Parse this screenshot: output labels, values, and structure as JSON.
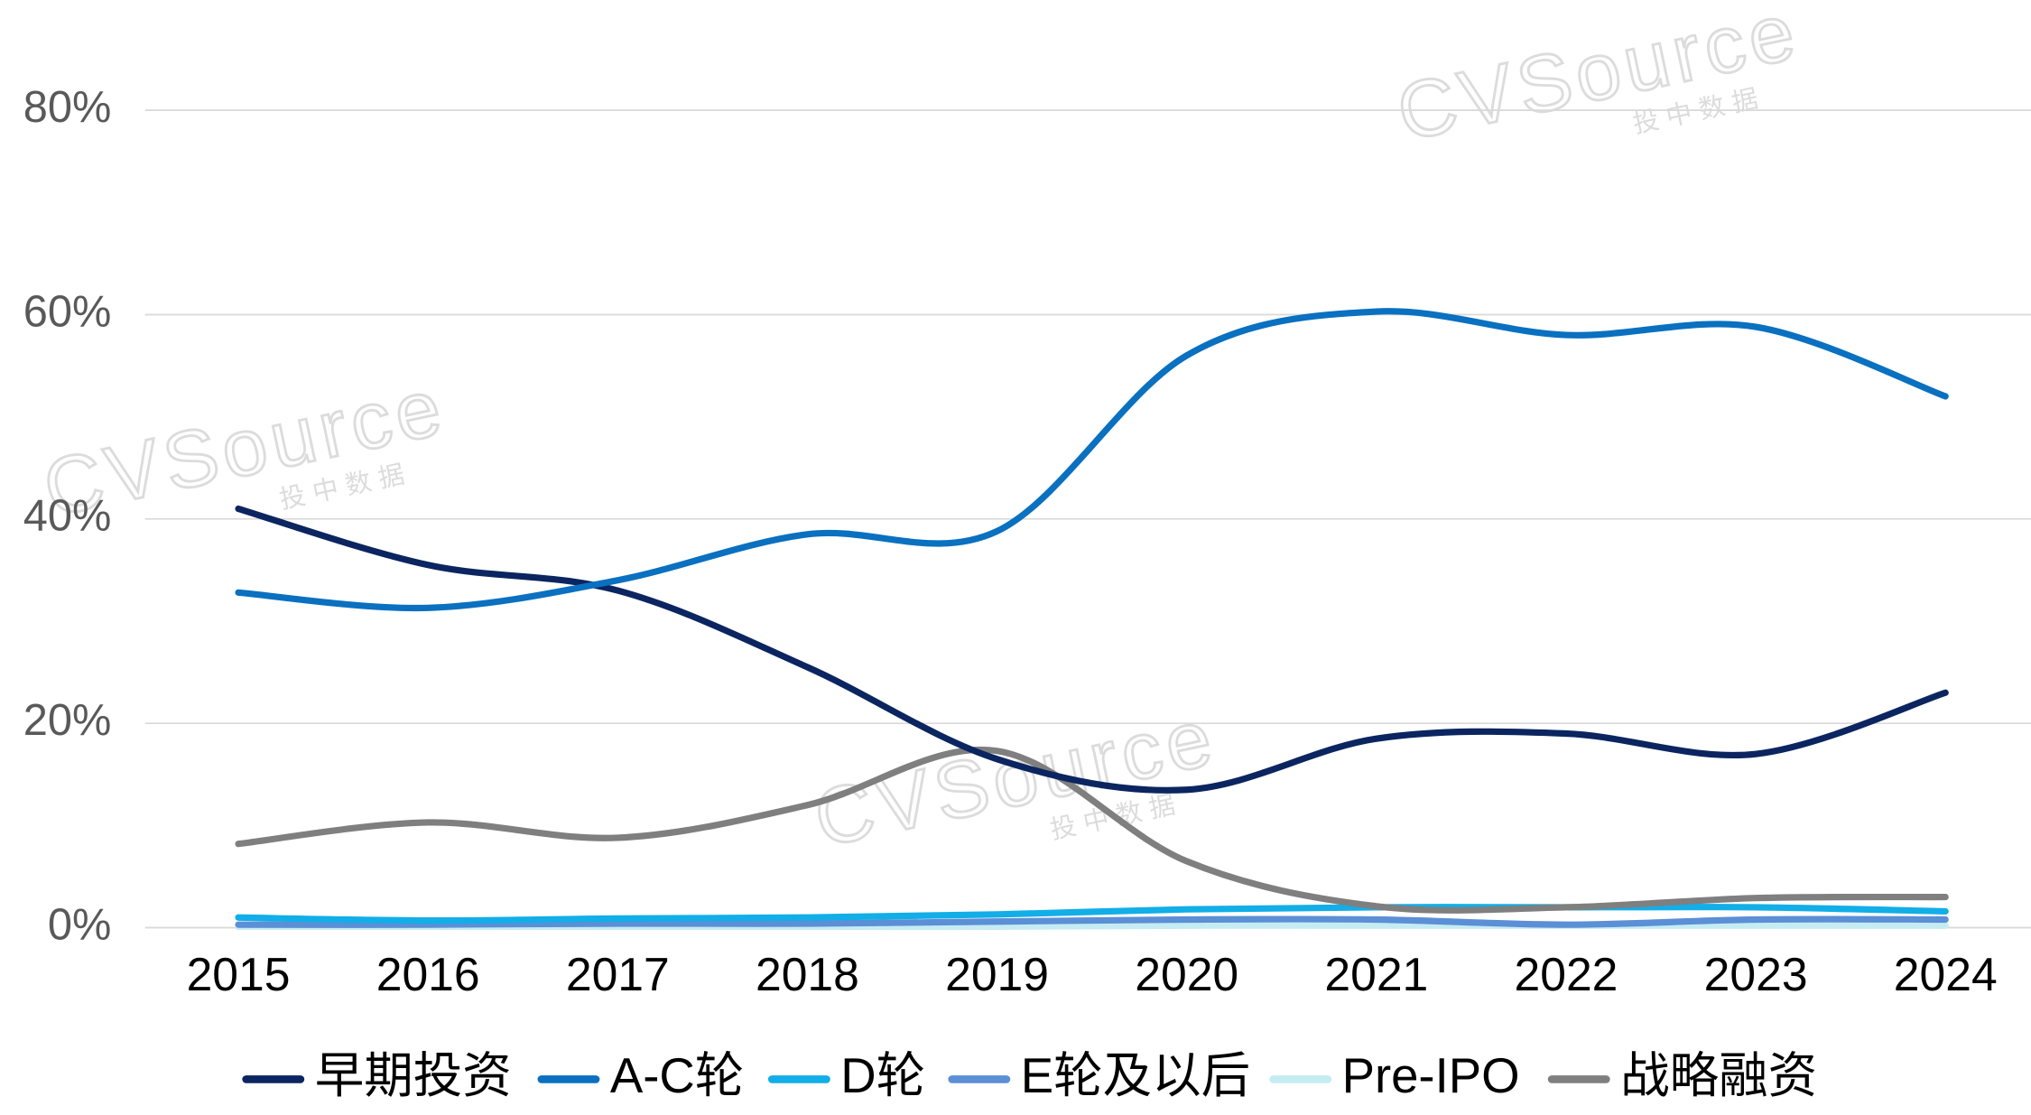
{
  "chart_data": {
    "type": "line",
    "x": [
      "2015",
      "2016",
      "2017",
      "2018",
      "2019",
      "2020",
      "2021",
      "2022",
      "2023",
      "2024"
    ],
    "series": [
      {
        "name": "早期投资",
        "color": "#0b2560",
        "values": [
          41,
          35.5,
          33,
          25.5,
          16.5,
          13.5,
          18.5,
          19,
          17,
          23
        ]
      },
      {
        "name": "A-C轮",
        "color": "#0a70c0",
        "values": [
          32.8,
          31.3,
          34,
          38.5,
          38.8,
          56,
          60.3,
          58,
          58.8,
          52
        ]
      },
      {
        "name": "D轮",
        "color": "#12aee8",
        "values": [
          1,
          0.7,
          0.9,
          1,
          1.3,
          1.8,
          2,
          2,
          2,
          1.6
        ]
      },
      {
        "name": "E轮及以后",
        "color": "#5b8fd6",
        "values": [
          0.3,
          0.3,
          0.4,
          0.4,
          0.6,
          0.8,
          0.8,
          0.3,
          0.8,
          0.8
        ]
      },
      {
        "name": "Pre-IPO",
        "color": "#c5ecf3",
        "values": [
          0.1,
          0.1,
          0.1,
          0.1,
          0.1,
          0.2,
          0.2,
          0.2,
          0.2,
          0.2
        ]
      },
      {
        "name": "战略融资",
        "color": "#7f7f7f",
        "values": [
          8.2,
          10.3,
          8.8,
          12,
          17.3,
          6.5,
          2.1,
          2,
          2.9,
          3
        ]
      }
    ],
    "ylim": [
      0,
      80
    ],
    "yticks": [
      {
        "value": 0,
        "label": "0%"
      },
      {
        "value": 20,
        "label": "20%"
      },
      {
        "value": 40,
        "label": "40%"
      },
      {
        "value": 60,
        "label": "60%"
      },
      {
        "value": 80,
        "label": "80%"
      }
    ],
    "grid": true,
    "smooth": true,
    "legend": "bottom",
    "watermark": "CVSource",
    "watermark_sub": "投中数据"
  }
}
